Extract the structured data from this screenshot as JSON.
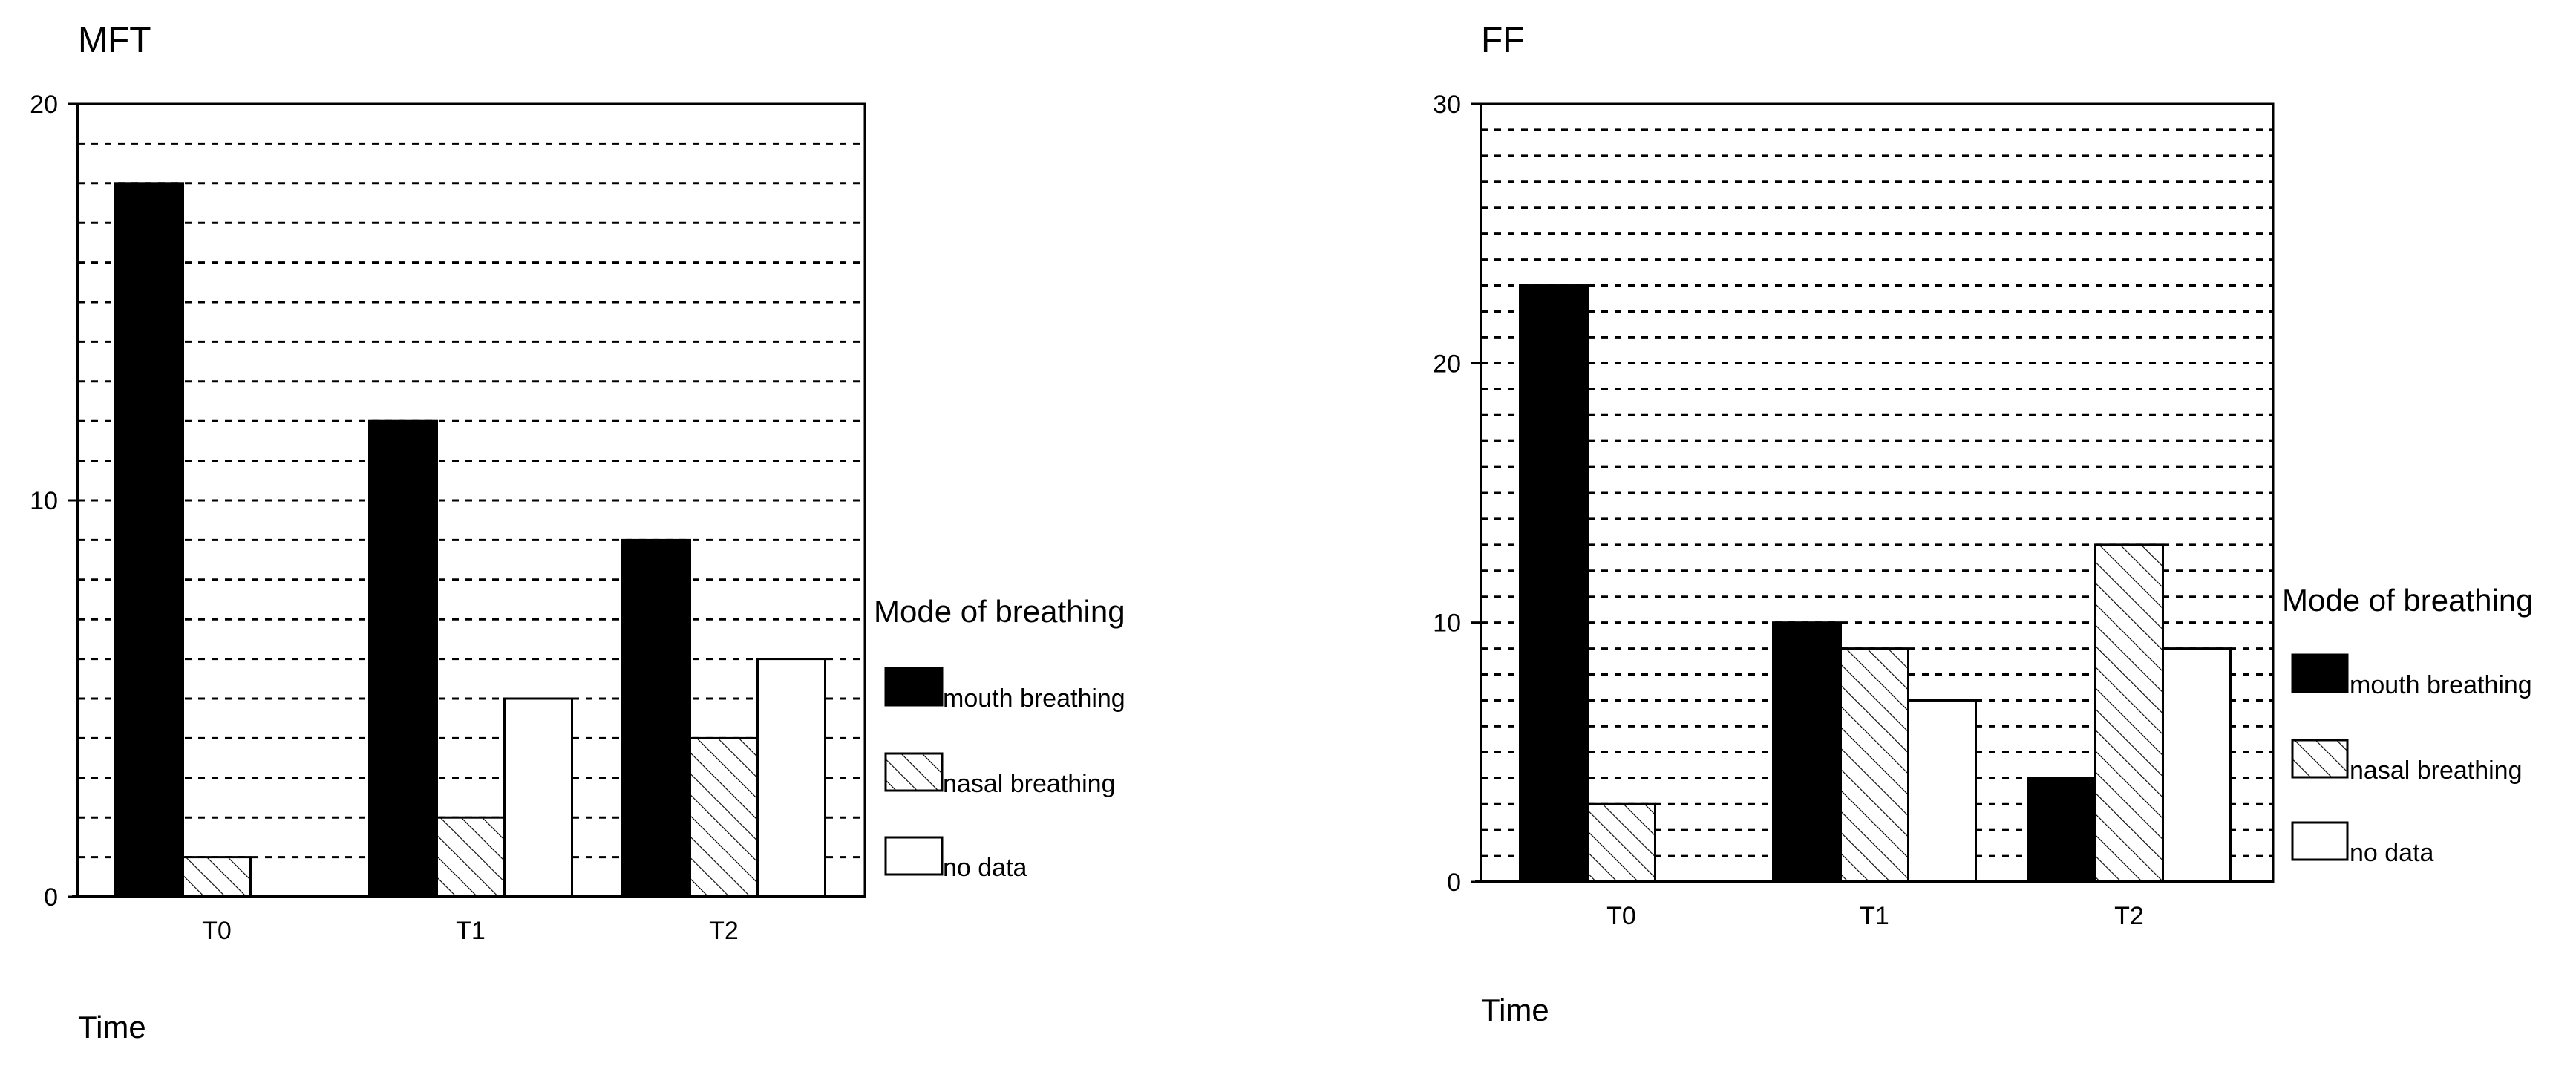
{
  "legend_labels": {
    "mouth": "mouth breathing",
    "nasal": "nasal breathing",
    "none": "no data"
  },
  "chart_data": [
    {
      "type": "bar",
      "title": "MFT",
      "xlabel": "Time",
      "ylabel": "",
      "categories": [
        "T0",
        "T1",
        "T2"
      ],
      "series": [
        {
          "name": "mouth breathing",
          "key": "mouth",
          "values": [
            18,
            12,
            9
          ]
        },
        {
          "name": "nasal breathing",
          "key": "nasal",
          "values": [
            1,
            2,
            4
          ]
        },
        {
          "name": "no data",
          "key": "none",
          "values": [
            0,
            5,
            6
          ]
        }
      ],
      "ylim": [
        0,
        20
      ],
      "yticks": [
        0,
        10,
        20
      ],
      "gridline_step": 1,
      "grid": true,
      "legend_title": "Mode of breathing",
      "legend_placement": "right"
    },
    {
      "type": "bar",
      "title": "FF",
      "xlabel": "Time",
      "ylabel": "",
      "categories": [
        "T0",
        "T1",
        "T2"
      ],
      "series": [
        {
          "name": "mouth breathing",
          "key": "mouth",
          "values": [
            23,
            10,
            4
          ]
        },
        {
          "name": "nasal breathing",
          "key": "nasal",
          "values": [
            3,
            9,
            13
          ]
        },
        {
          "name": "no data",
          "key": "none",
          "values": [
            0,
            7,
            9
          ]
        }
      ],
      "ylim": [
        0,
        30
      ],
      "yticks": [
        0,
        10,
        20,
        30
      ],
      "gridline_step": 1,
      "grid": true,
      "legend_title": "Mode of breathing",
      "legend_placement": "right"
    }
  ]
}
